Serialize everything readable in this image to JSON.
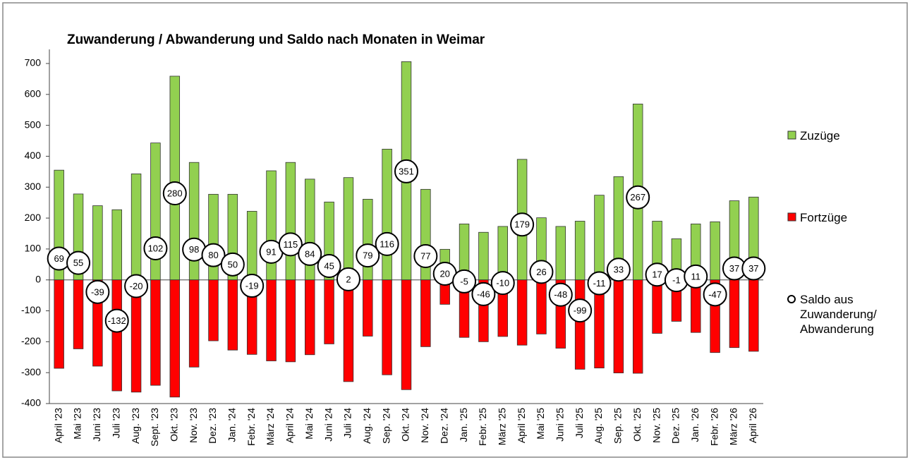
{
  "chart_data": {
    "type": "bar",
    "title": "Zuwanderung / Abwanderung und Saldo nach Monaten in Weimar",
    "categories": [
      "April '23",
      "Mai '23",
      "Juni '23",
      "Juli '23",
      "Aug. '23",
      "Sept. '23",
      "Okt. '23",
      "Nov. '23",
      "Dez. '23",
      "Jan. '24",
      "Febr. '24",
      "März '24",
      "April '24",
      "Mai '24",
      "Juni '24",
      "Juli '24",
      "Aug. '24",
      "Sep. '24",
      "Okt. '24",
      "Nov. '24",
      "Dez. '24",
      "Jan. '25",
      "Febr. '25",
      "März '25",
      "April '25",
      "Mai '25",
      "Juni '25",
      "Juli '25",
      "Aug. '25",
      "Sep. '25",
      "Okt. '25",
      "Nov. '25",
      "Dez. '25",
      "Jan. '26",
      "Febr. '26",
      "März '26",
      "April '26"
    ],
    "series": [
      {
        "name": "Zuzüge",
        "color": "#92d050",
        "values": [
          355,
          278,
          240,
          227,
          343,
          443,
          659,
          380,
          277,
          277,
          222,
          353,
          380,
          326,
          252,
          331,
          261,
          423,
          706,
          293,
          99,
          181,
          154,
          173,
          390,
          201,
          173,
          190,
          274,
          334,
          569,
          190,
          133,
          181,
          188,
          256,
          268
        ]
      },
      {
        "name": "Fortzüge",
        "color": "#ff0000",
        "values": [
          -286,
          -223,
          -279,
          -359,
          -363,
          -341,
          -379,
          -282,
          -197,
          -227,
          -241,
          -262,
          -265,
          -242,
          -207,
          -329,
          -182,
          -307,
          -355,
          -216,
          -79,
          -186,
          -200,
          -183,
          -211,
          -175,
          -221,
          -289,
          -285,
          -301,
          -302,
          -173,
          -134,
          -170,
          -235,
          -219,
          -231
        ]
      },
      {
        "name": "Saldo aus Zuwanderung/ Abwanderung",
        "color": "#ffffff",
        "values": [
          69,
          55,
          -39,
          -132,
          -20,
          102,
          280,
          98,
          80,
          50,
          -19,
          91,
          115,
          84,
          45,
          2,
          79,
          116,
          351,
          77,
          20,
          -5,
          -46,
          -10,
          179,
          26,
          -48,
          -99,
          -11,
          33,
          267,
          17,
          -1,
          11,
          -47,
          37,
          37
        ]
      }
    ],
    "ylim": [
      -400,
      700
    ],
    "yticks": [
      -400,
      -300,
      -200,
      -100,
      0,
      100,
      200,
      300,
      400,
      500,
      600,
      700
    ]
  }
}
